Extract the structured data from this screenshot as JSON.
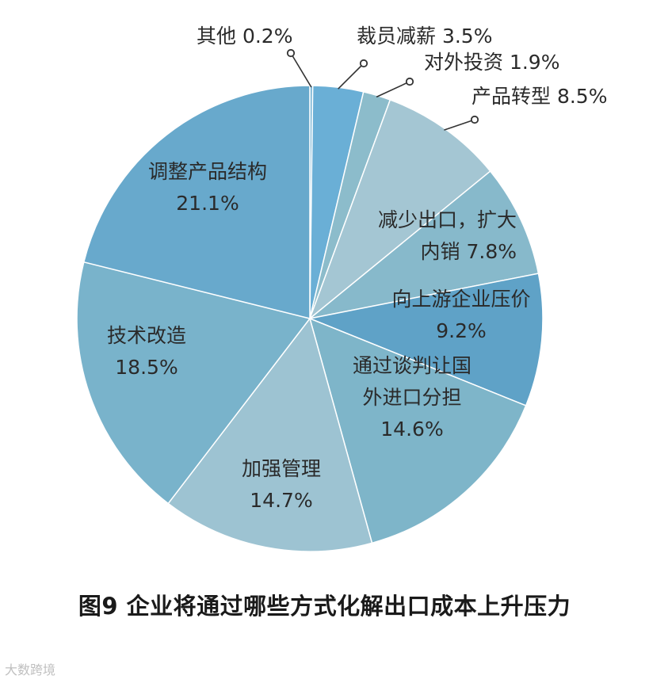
{
  "chart_data": {
    "type": "pie",
    "title": "",
    "caption": "图9  企业将通过哪些方式化解出口成本上升压力",
    "slices": [
      {
        "label_lines": [
          "其他 0.2%"
        ],
        "value": 0.2,
        "color": "#79b4d4",
        "label_mode": "callout"
      },
      {
        "label_lines": [
          "裁员减薪 3.5%"
        ],
        "value": 3.5,
        "color": "#6aafd6",
        "label_mode": "callout"
      },
      {
        "label_lines": [
          "对外投资 1.9%"
        ],
        "value": 1.9,
        "color": "#8cbccb",
        "label_mode": "callout"
      },
      {
        "label_lines": [
          "产品转型 8.5%"
        ],
        "value": 8.5,
        "color": "#a4c6d3",
        "label_mode": "callout"
      },
      {
        "label_lines": [
          "减少出口，扩大",
          "内销 7.8%"
        ],
        "value": 7.8,
        "color": "#87b9cb",
        "label_mode": "inside"
      },
      {
        "label_lines": [
          "向上游企业压价",
          "9.2%"
        ],
        "value": 9.2,
        "color": "#5fa2c7",
        "label_mode": "inside"
      },
      {
        "label_lines": [
          "通过谈判让国",
          "外进口分担",
          "14.6%"
        ],
        "value": 14.6,
        "color": "#7eb5c9",
        "label_mode": "inside"
      },
      {
        "label_lines": [
          "加强管理",
          "14.7%"
        ],
        "value": 14.7,
        "color": "#9dc3d2",
        "label_mode": "inside"
      },
      {
        "label_lines": [
          "技术改造",
          "18.5%"
        ],
        "value": 18.5,
        "color": "#79b3cb",
        "label_mode": "inside"
      },
      {
        "label_lines": [
          "调整产品结构",
          "21.1%"
        ],
        "value": 21.1,
        "color": "#68a9cc",
        "label_mode": "inside"
      }
    ]
  },
  "watermark": "大数跨境"
}
